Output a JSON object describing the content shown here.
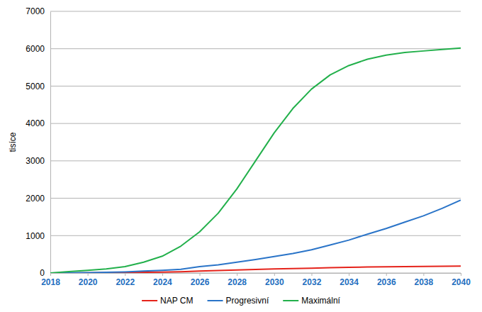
{
  "chart_data": {
    "type": "line",
    "y_label": "tisíce",
    "x": [
      2018,
      2019,
      2020,
      2021,
      2022,
      2023,
      2024,
      2025,
      2026,
      2027,
      2028,
      2029,
      2030,
      2031,
      2032,
      2033,
      2034,
      2035,
      2036,
      2037,
      2038,
      2039,
      2040
    ],
    "series": [
      {
        "name": "NAP CM",
        "color": "#e5231b",
        "values": [
          0,
          2,
          5,
          8,
          12,
          18,
          25,
          35,
          50,
          65,
          80,
          95,
          110,
          120,
          130,
          140,
          150,
          160,
          165,
          170,
          175,
          180,
          185
        ]
      },
      {
        "name": "Progresivní",
        "color": "#2a74c8",
        "values": [
          0,
          5,
          10,
          20,
          30,
          50,
          70,
          100,
          170,
          220,
          290,
          360,
          440,
          520,
          620,
          750,
          880,
          1040,
          1190,
          1360,
          1530,
          1730,
          1950
        ]
      },
      {
        "name": "Maximální",
        "color": "#22b04b",
        "values": [
          0,
          40,
          70,
          110,
          170,
          290,
          450,
          720,
          1100,
          1600,
          2250,
          3000,
          3750,
          4400,
          4920,
          5300,
          5550,
          5720,
          5830,
          5900,
          5940,
          5980,
          6020
        ]
      }
    ],
    "xlim": [
      2018,
      2040
    ],
    "xticks": [
      2018,
      2020,
      2022,
      2024,
      2026,
      2028,
      2030,
      2032,
      2034,
      2036,
      2038,
      2040
    ],
    "ylim": [
      0,
      7000
    ],
    "yticks": [
      0,
      1000,
      2000,
      3000,
      4000,
      5000,
      6000,
      7000
    ],
    "grid": true,
    "legend": "bottom"
  }
}
